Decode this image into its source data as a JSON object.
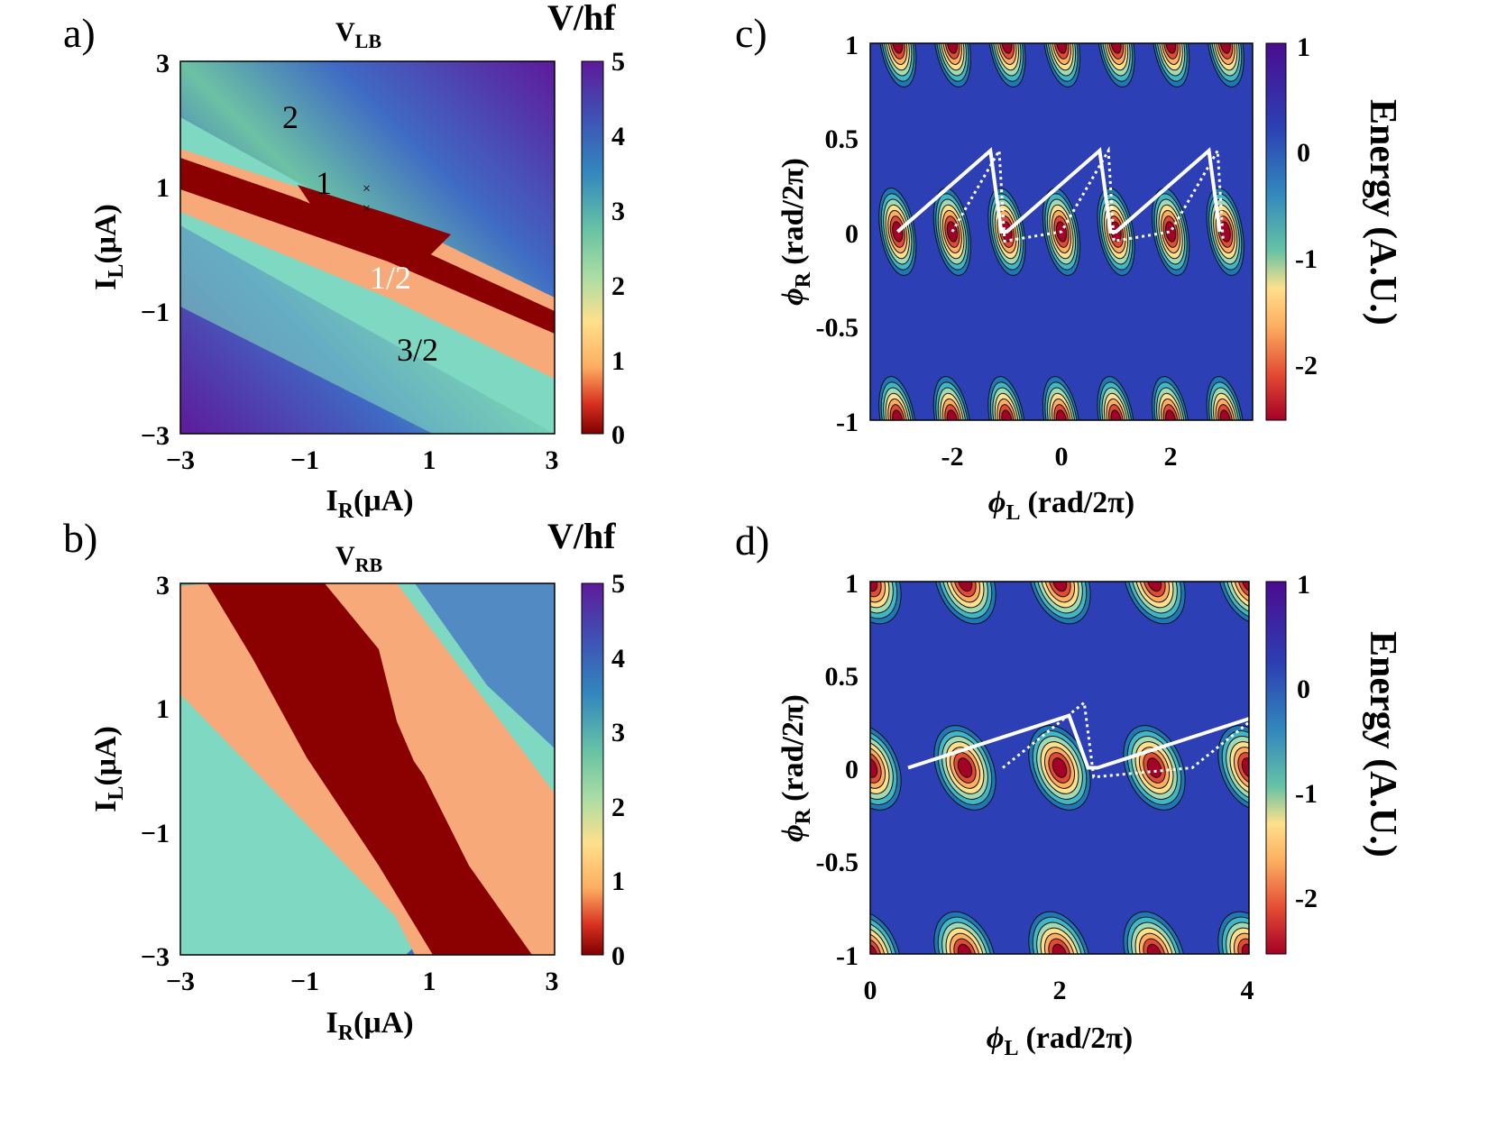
{
  "panels": {
    "a": {
      "label": "a)",
      "title_main": "V",
      "title_sub": "LB",
      "colorbar_title": "V/hf",
      "colorbar_ticks": [
        "5",
        "4",
        "3",
        "2",
        "1",
        "0"
      ],
      "y_ticks": [
        "3",
        "1",
        "−1",
        "−3"
      ],
      "x_ticks": [
        "−3",
        "−1",
        "1",
        "3"
      ],
      "xlabel_main": "I",
      "xlabel_sub": "R",
      "xlabel_unit": "(μA)",
      "ylabel_main": "I",
      "ylabel_sub": "L",
      "ylabel_unit": "(μA)",
      "annotations": [
        "2",
        "1",
        "1/2",
        "3/2"
      ]
    },
    "b": {
      "label": "b)",
      "title_main": "V",
      "title_sub": "RB",
      "colorbar_title": "V/hf",
      "colorbar_ticks": [
        "5",
        "4",
        "3",
        "2",
        "1",
        "0"
      ],
      "y_ticks": [
        "3",
        "1",
        "−1",
        "−3"
      ],
      "x_ticks": [
        "−3",
        "−1",
        "1",
        "3"
      ],
      "xlabel_main": "I",
      "xlabel_sub": "R",
      "xlabel_unit": "(μA)",
      "ylabel_main": "I",
      "ylabel_sub": "L",
      "ylabel_unit": "(μA)"
    },
    "c": {
      "label": "c)",
      "y_ticks": [
        "1",
        "0.5",
        "0",
        "-0.5",
        "-1"
      ],
      "x_ticks": [
        "-2",
        "0",
        "2"
      ],
      "colorbar_ticks": [
        "1",
        "0",
        "-1",
        "-2"
      ],
      "colorbar_title": "Energy (A.U.)",
      "xlabel_main": "ϕ",
      "xlabel_sub": "L",
      "xlabel_unit": "(rad/2π)",
      "ylabel_main": "ϕ",
      "ylabel_sub": "R",
      "ylabel_unit": "(rad/2π)"
    },
    "d": {
      "label": "d)",
      "y_ticks": [
        "1",
        "0.5",
        "0",
        "-0.5",
        "-1"
      ],
      "x_ticks": [
        "0",
        "2",
        "4"
      ],
      "colorbar_ticks": [
        "1",
        "0",
        "-1",
        "-2"
      ],
      "colorbar_title": "Energy (A.U.)",
      "xlabel_main": "ϕ",
      "xlabel_sub": "L",
      "xlabel_unit": "(rad/2π)",
      "ylabel_main": "ϕ",
      "ylabel_sub": "R",
      "ylabel_unit": "(rad/2π)"
    }
  },
  "chart_data": [
    {
      "type": "heatmap",
      "panel": "a",
      "title": "V_LB",
      "xlabel": "I_R (μA)",
      "ylabel": "I_L (μA)",
      "xlim": [
        -3,
        3
      ],
      "ylim": [
        -3,
        3
      ],
      "colorbar_label": "V/hf",
      "colorbar_range": [
        0,
        5
      ],
      "plateaus": [
        {
          "label": "1/2",
          "value": 0.5
        },
        {
          "label": "1",
          "value": 1
        },
        {
          "label": "3/2",
          "value": 1.5
        },
        {
          "label": "2",
          "value": 2
        }
      ],
      "markers": [
        {
          "x": 0,
          "y": 0.95
        },
        {
          "x": 0,
          "y": 0.6
        }
      ]
    },
    {
      "type": "heatmap",
      "panel": "b",
      "title": "V_RB",
      "xlabel": "I_R (μA)",
      "ylabel": "I_L (μA)",
      "xlim": [
        -3,
        3
      ],
      "ylim": [
        -3,
        3
      ],
      "colorbar_label": "V/hf",
      "colorbar_range": [
        0,
        5
      ]
    },
    {
      "type": "heatmap",
      "panel": "c",
      "xlabel": "ϕ_L (rad/2π)",
      "ylabel": "ϕ_R (rad/2π)",
      "xlim": [
        -3.5,
        3.5
      ],
      "ylim": [
        -1,
        1
      ],
      "colorbar_label": "Energy (A.U.)",
      "colorbar_range": [
        -2.5,
        1
      ],
      "minima_x": [
        -3,
        -2,
        -1,
        0,
        1,
        2,
        3
      ],
      "trajectory_x_range": [
        -3,
        3
      ]
    },
    {
      "type": "heatmap",
      "panel": "d",
      "xlabel": "ϕ_L (rad/2π)",
      "ylabel": "ϕ_R (rad/2π)",
      "xlim": [
        0,
        4
      ],
      "ylim": [
        -1,
        1
      ],
      "colorbar_label": "Energy (A.U.)",
      "colorbar_range": [
        -2.5,
        1
      ],
      "minima_x": [
        0,
        1,
        2,
        3,
        4
      ],
      "trajectory_x_range": [
        0.4,
        3.9
      ]
    }
  ]
}
